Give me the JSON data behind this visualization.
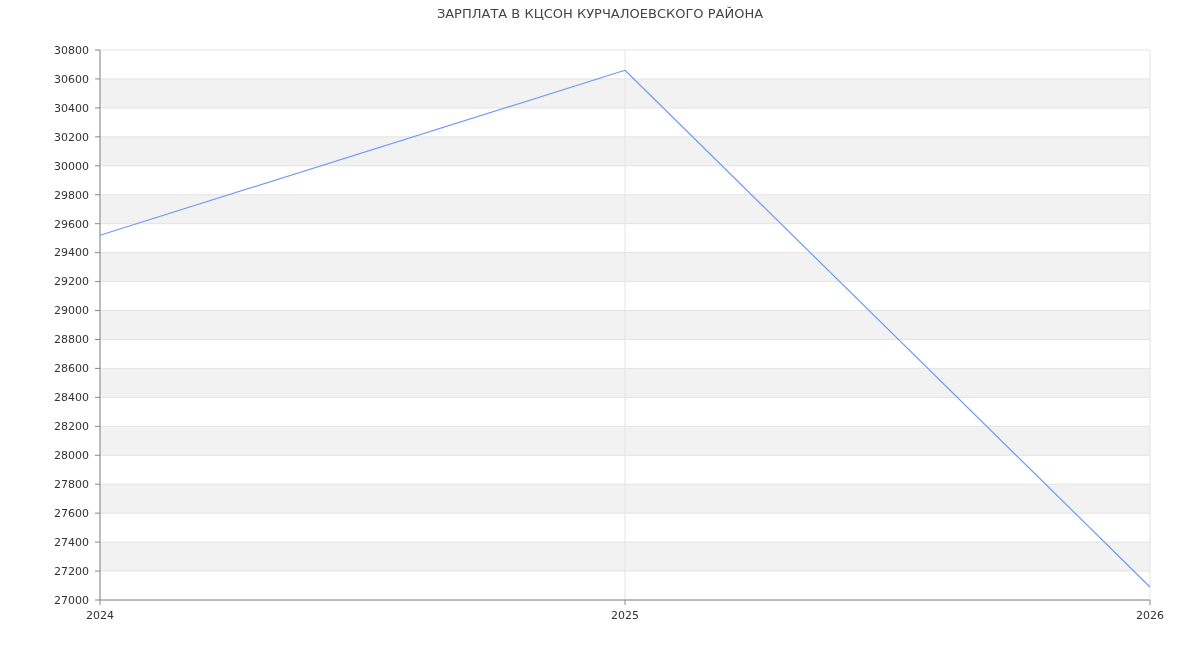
{
  "chart_data": {
    "type": "line",
    "title": "ЗАРПЛАТА В КЦСОН КУРЧАЛОЕВСКОГО РАЙОНА",
    "x": [
      2024,
      2025,
      2026
    ],
    "series": [
      {
        "color": "#6f9cf2",
        "values": [
          29520,
          30660,
          27090
        ]
      }
    ],
    "xlim": [
      2024,
      2026
    ],
    "xticks": [
      2024,
      2025,
      2026
    ],
    "ylim": [
      27000,
      30800
    ],
    "yticks": [
      27000,
      27200,
      27400,
      27600,
      27800,
      28000,
      28200,
      28400,
      28600,
      28800,
      29000,
      29200,
      29400,
      29600,
      29800,
      30000,
      30200,
      30400,
      30600,
      30800
    ],
    "grid": true,
    "marker": "none",
    "line_style": "solid"
  }
}
